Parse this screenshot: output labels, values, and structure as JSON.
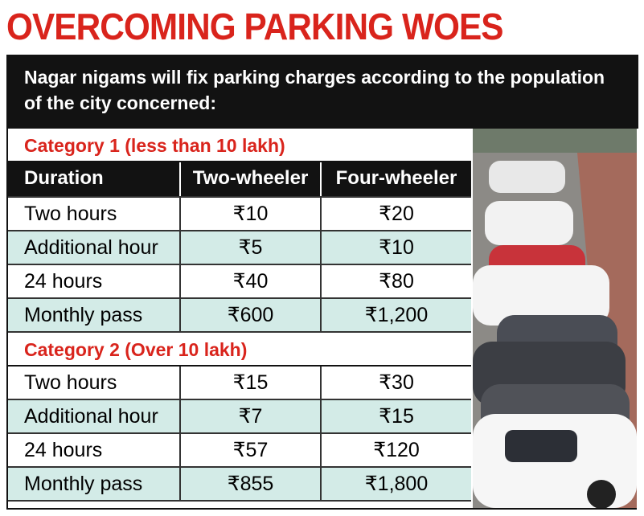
{
  "title": "OVERCOMING PARKING WOES",
  "intro": "Nagar nigams will fix parking charges according to the population of the city concerned:",
  "columns": [
    "Duration",
    "Two-wheeler",
    "Four-wheeler"
  ],
  "categories": [
    {
      "heading": "Category 1 (less than 10 lakh)",
      "rows": [
        [
          "Two hours",
          "₹10",
          "₹20"
        ],
        [
          "Additional hour",
          "₹5",
          "₹10"
        ],
        [
          "24 hours",
          "₹40",
          "₹80"
        ],
        [
          "Monthly pass",
          "₹600",
          "₹1,200"
        ]
      ]
    },
    {
      "heading": "Category 2 (Over 10 lakh)",
      "rows": [
        [
          "Two hours",
          "₹15",
          "₹30"
        ],
        [
          "Additional hour",
          "₹7",
          "₹15"
        ],
        [
          "24 hours",
          "₹57",
          "₹120"
        ],
        [
          "Monthly pass",
          "₹855",
          "₹1,800"
        ]
      ]
    }
  ]
}
